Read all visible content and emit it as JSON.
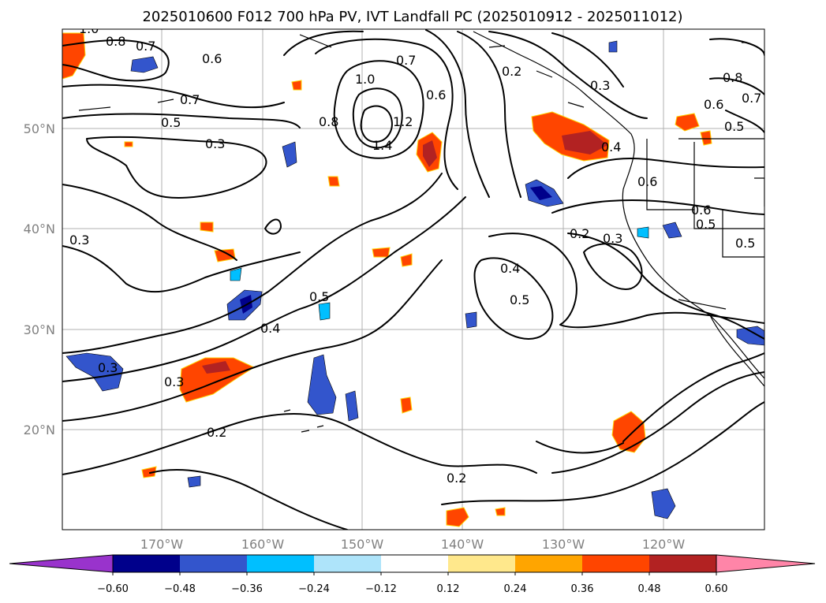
{
  "title": "2025010600 F012 700 hPa PV, IVT Landfall PC (2025010912 - 2025011012)",
  "lat_labels": [
    "50°N",
    "40°N",
    "30°N",
    "20°N"
  ],
  "lon_labels": [
    "170°W",
    "160°W",
    "150°W",
    "140°W",
    "130°W",
    "120°W"
  ],
  "colorbar": {
    "ticks": [
      "−0.60",
      "−0.48",
      "−0.36",
      "−0.24",
      "−0.12",
      "0.12",
      "0.24",
      "0.36",
      "0.48",
      "0.60"
    ],
    "colors": [
      "#9933cc",
      "#00008b",
      "#3355cc",
      "#00bfff",
      "#aee4fa",
      "#ffffff",
      "#ffe88c",
      "#ffa500",
      "#ff4500",
      "#b22222",
      "#ff85a8"
    ]
  },
  "contour_labels": [
    "1.0",
    "0.8",
    "0.7",
    "0.6",
    "0.7",
    "0.5",
    "0.3",
    "1.0",
    "0.8",
    "1.4",
    "1.2",
    "0.7",
    "0.6",
    "0.2",
    "0.3",
    "0.4",
    "0.6",
    "0.8",
    "0.6",
    "0.7",
    "0.5",
    "0.6",
    "0.5",
    "0.5",
    "0.3",
    "0.2",
    "0.3",
    "0.4",
    "0.5",
    "0.5",
    "0.4",
    "0.3",
    "0.3",
    "0.2",
    "0.2"
  ],
  "map": {
    "lon_range": [
      -180,
      -110
    ],
    "lat_range": [
      10,
      60
    ],
    "gridlines": true,
    "shading": "IVT Landfall PC",
    "contours": "700 hPa PV"
  }
}
